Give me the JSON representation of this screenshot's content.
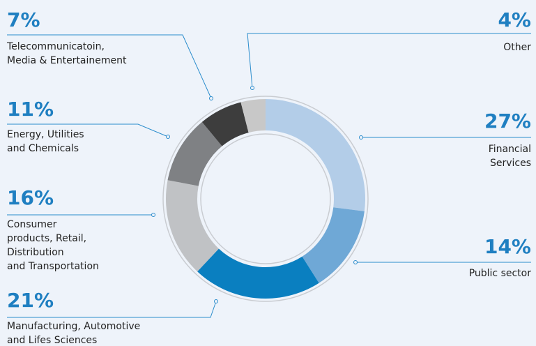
{
  "chart_data": {
    "type": "donut",
    "categories": [
      [
        "Financial",
        "Services"
      ],
      [
        "Public sector"
      ],
      [
        "Manufacturing, Automotive",
        "and Lifes Sciences"
      ],
      [
        "Consumer",
        "products, Retail,",
        "Distribution",
        "and Transportation"
      ],
      [
        "Energy, Utilities",
        "and Chemicals"
      ],
      [
        "Telecommunicatoin,",
        "Media & Entertainement"
      ],
      [
        "Other"
      ]
    ],
    "values": [
      27,
      14,
      21,
      16,
      11,
      7,
      4
    ],
    "value_labels": [
      "27%",
      "14%",
      "21%",
      "16%",
      "11%",
      "7%",
      "4%"
    ],
    "colors": [
      "#b3cde8",
      "#6fa8d6",
      "#0a7fc0",
      "#c0c2c5",
      "#7f8184",
      "#3d3d3d",
      "#c8c8c8"
    ]
  }
}
